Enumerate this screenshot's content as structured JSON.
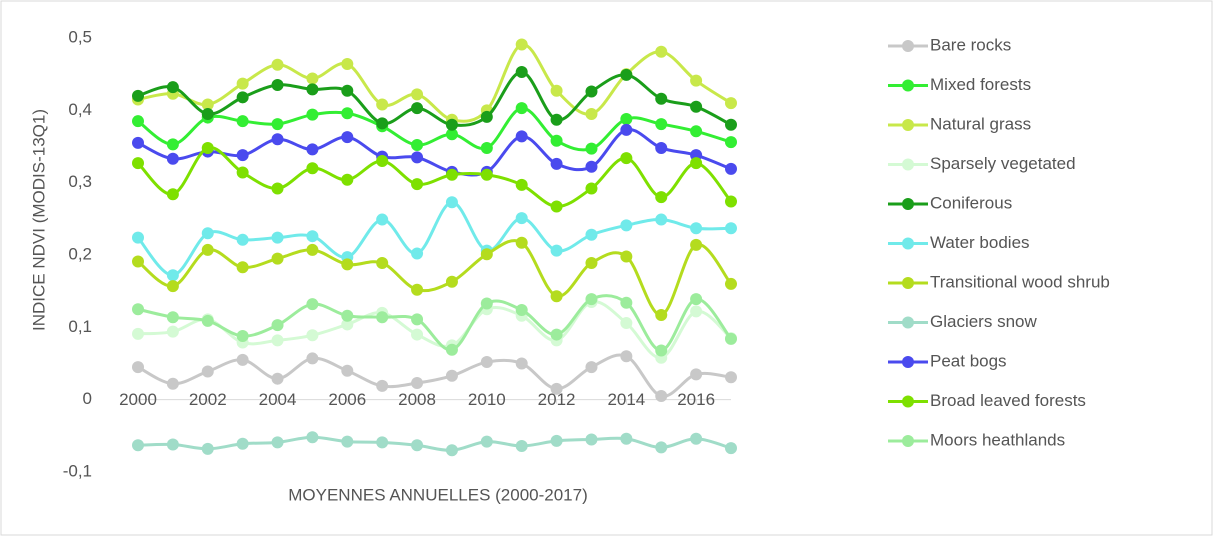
{
  "chart_data": {
    "type": "line",
    "y_label": "INDICE NDVI (MODIS-13Q1)",
    "x_label": "MOYENNES ANNUELLES (2000-2017)",
    "x": [
      2000,
      2001,
      2002,
      2003,
      2004,
      2005,
      2006,
      2007,
      2008,
      2009,
      2010,
      2011,
      2012,
      2013,
      2014,
      2015,
      2016,
      2017
    ],
    "xlim": [
      2000,
      2017
    ],
    "xticks": [
      2000,
      2002,
      2004,
      2006,
      2008,
      2010,
      2012,
      2014,
      2016
    ],
    "ylim": [
      -0.1,
      0.5
    ],
    "yticks": [
      {
        "value": -0.1,
        "label": "-0,1"
      },
      0,
      {
        "value": 0.1,
        "label": "0,1"
      },
      {
        "value": 0.2,
        "label": "0,2"
      },
      {
        "value": 0.3,
        "label": "0,3"
      },
      {
        "value": 0.4,
        "label": "0,4"
      },
      {
        "value": 0.5,
        "label": "0,5"
      }
    ],
    "grid": false,
    "smooth": true,
    "legend": "right",
    "series": [
      {
        "name": "Bare rocks",
        "color": "#c8c8c8",
        "values": [
          0.045,
          0.022,
          0.039,
          0.055,
          0.029,
          0.057,
          0.04,
          0.019,
          0.023,
          0.033,
          0.052,
          0.05,
          0.015,
          0.045,
          0.06,
          0.005,
          0.035,
          0.031
        ]
      },
      {
        "name": "Mixed forests",
        "color": "#33ee33",
        "values": [
          0.385,
          0.353,
          0.39,
          0.385,
          0.381,
          0.394,
          0.396,
          0.378,
          0.352,
          0.367,
          0.348,
          0.403,
          0.358,
          0.347,
          0.388,
          0.381,
          0.371,
          0.356
        ]
      },
      {
        "name": "Natural grass",
        "color": "#c8e84a",
        "values": [
          0.415,
          0.423,
          0.408,
          0.437,
          0.463,
          0.444,
          0.464,
          0.408,
          0.422,
          0.387,
          0.4,
          0.491,
          0.427,
          0.395,
          0.45,
          0.481,
          0.441,
          0.41
        ]
      },
      {
        "name": "Sparsely vegetated",
        "color": "#d4fad4",
        "values": [
          0.091,
          0.094,
          0.111,
          0.079,
          0.082,
          0.089,
          0.104,
          0.12,
          0.09,
          0.075,
          0.125,
          0.116,
          0.082,
          0.135,
          0.106,
          0.058,
          0.122,
          0.085
        ]
      },
      {
        "name": "Coniferous",
        "color": "#1a9e1a",
        "values": [
          0.42,
          0.432,
          0.395,
          0.418,
          0.435,
          0.429,
          0.427,
          0.382,
          0.403,
          0.38,
          0.391,
          0.453,
          0.387,
          0.426,
          0.449,
          0.416,
          0.405,
          0.38
        ]
      },
      {
        "name": "Water bodies",
        "color": "#70eaea",
        "values": [
          0.224,
          0.172,
          0.23,
          0.221,
          0.224,
          0.226,
          0.197,
          0.249,
          0.202,
          0.273,
          0.206,
          0.251,
          0.206,
          0.228,
          0.241,
          0.249,
          0.237,
          0.237
        ]
      },
      {
        "name": "Transitional wood shrub",
        "color": "#b4dc1e",
        "values": [
          0.191,
          0.157,
          0.207,
          0.183,
          0.195,
          0.207,
          0.187,
          0.189,
          0.152,
          0.163,
          0.201,
          0.217,
          0.143,
          0.189,
          0.198,
          0.117,
          0.214,
          0.16
        ]
      },
      {
        "name": "Glaciers snow",
        "color": "#a0dcc8",
        "values": [
          -0.063,
          -0.062,
          -0.068,
          -0.061,
          -0.059,
          -0.052,
          -0.058,
          -0.059,
          -0.063,
          -0.07,
          -0.058,
          -0.064,
          -0.057,
          -0.055,
          -0.054,
          -0.066,
          -0.054,
          -0.067
        ]
      },
      {
        "name": "Peat bogs",
        "color": "#4a4aee",
        "values": [
          0.355,
          0.333,
          0.343,
          0.338,
          0.36,
          0.346,
          0.363,
          0.336,
          0.335,
          0.315,
          0.315,
          0.364,
          0.326,
          0.322,
          0.373,
          0.348,
          0.338,
          0.319
        ]
      },
      {
        "name": "Broad leaved forests",
        "color": "#7ee000",
        "values": [
          0.327,
          0.284,
          0.348,
          0.314,
          0.292,
          0.32,
          0.304,
          0.33,
          0.298,
          0.311,
          0.311,
          0.297,
          0.267,
          0.292,
          0.334,
          0.28,
          0.327,
          0.274
        ]
      },
      {
        "name": "Moors heathlands",
        "color": "#9cec9c",
        "values": [
          0.125,
          0.114,
          0.109,
          0.088,
          0.103,
          0.132,
          0.116,
          0.114,
          0.111,
          0.069,
          0.133,
          0.124,
          0.09,
          0.139,
          0.134,
          0.068,
          0.139,
          0.084
        ]
      }
    ]
  }
}
